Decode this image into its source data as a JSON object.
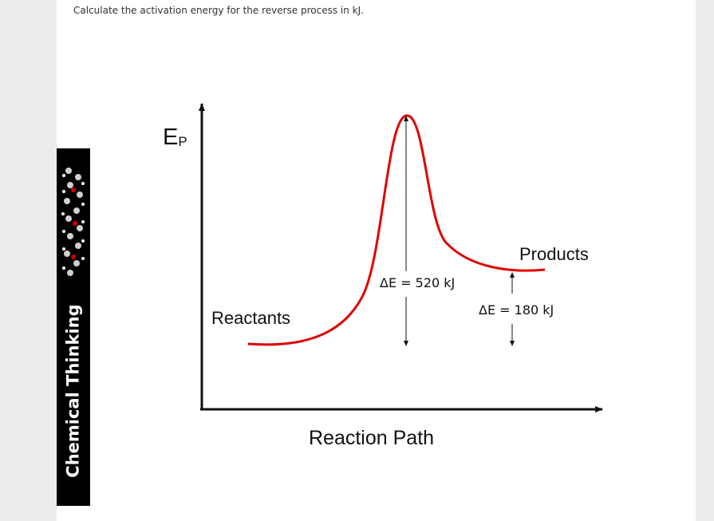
{
  "question": "Calculate the activation energy for the reverse process in kJ.",
  "brand": {
    "text": "Chemical Thinking"
  },
  "diagram": {
    "y_axis_label": "E",
    "y_axis_subscript": "P",
    "x_axis_label": "Reaction Path",
    "reactants_label": "Reactants",
    "products_label": "Products",
    "activation_delta_label": "ΔE = 520 kJ",
    "reaction_delta_label": "ΔE = 180 kJ",
    "curve_color": "#e00000",
    "axis_color": "#111111"
  }
}
